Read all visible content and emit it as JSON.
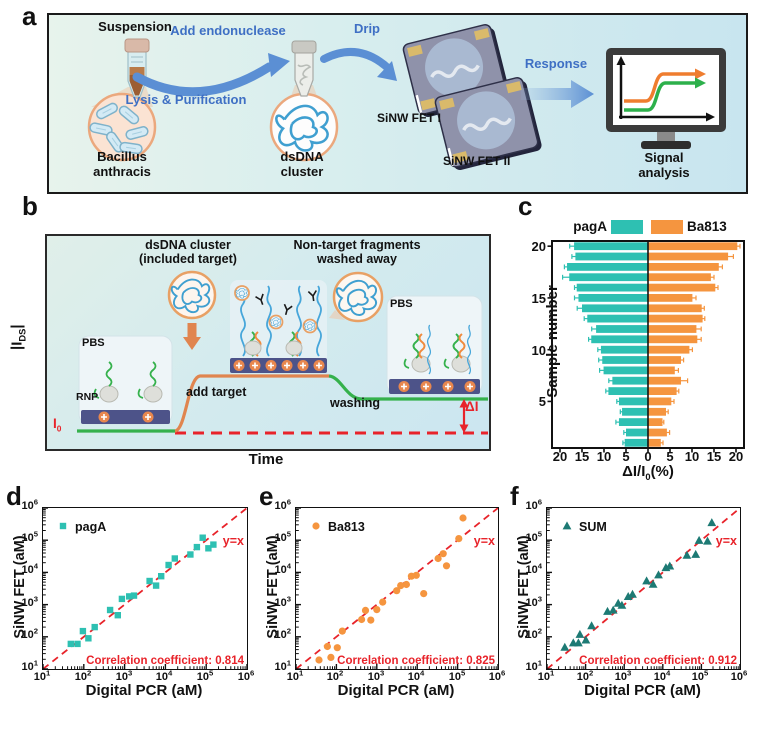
{
  "figure": {
    "panel_a": {
      "label": "a",
      "suspension": "Suspension",
      "bacillus_line1": "Bacillus",
      "bacillus_line2": "anthracis",
      "arrow_top": "Add endonuclease",
      "arrow_bottom": "Lysis & Purification",
      "dsdna_line1": "dsDNA",
      "dsdna_line2": "cluster",
      "drip": "Drip",
      "fet1": "SiNW FET I",
      "fet2": "SiNW FET II",
      "response": "Response",
      "signal_line1": "Signal",
      "signal_line2": "analysis"
    },
    "panel_b": {
      "label": "b",
      "y_axis_pre": "|I",
      "y_axis_sub": "DS",
      "y_axis_post": "|",
      "caption_left_line1": "dsDNA cluster",
      "caption_left_line2": "(included target)",
      "caption_right_line1": "Non-target fragments",
      "caption_right_line2": "washed away",
      "pbs_left": "PBS",
      "rnp": "RNP",
      "pbs_right": "PBS",
      "add_target": "add target",
      "washing": "washing",
      "i0_pre": "I",
      "i0_sub": "0",
      "delta_i": "ΔI",
      "x_axis": "Time"
    },
    "panel_c": {
      "label": "c"
    },
    "panel_d": {
      "label": "d"
    },
    "panel_e": {
      "label": "e"
    },
    "panel_f": {
      "label": "f"
    }
  },
  "chart_data": [
    {
      "id": "c",
      "type": "bar",
      "orientation": "horizontal-diverging",
      "legend": [
        "pagA",
        "Ba813"
      ],
      "ylabel": "Sample number",
      "xlabel_pre": "ΔI/I",
      "xlabel_sub": "0",
      "xlabel_post": "(%)",
      "x_ticks": [
        -20,
        -15,
        -10,
        -5,
        0,
        5,
        10,
        15,
        20
      ],
      "y_ticks": [
        5,
        10,
        15,
        20
      ],
      "xlim_each_side": [
        0,
        20
      ],
      "samples": [
        1,
        2,
        3,
        4,
        5,
        6,
        7,
        8,
        9,
        10,
        11,
        12,
        13,
        14,
        15,
        16,
        17,
        18,
        19,
        20
      ],
      "series": [
        {
          "name": "pagA",
          "side": "left",
          "color": "#2ec0b2",
          "values": [
            5.3,
            5.0,
            6.6,
            5.9,
            6.6,
            9.0,
            8.1,
            10.1,
            10.4,
            10.7,
            12.9,
            11.8,
            13.8,
            15.0,
            15.8,
            16.2,
            17.9,
            18.4,
            16.5,
            16.8
          ],
          "errors": [
            0.4,
            0.5,
            0.7,
            0.4,
            0.5,
            0.6,
            0.8,
            0.9,
            0.8,
            0.7,
            0.6,
            1.0,
            0.7,
            1.1,
            0.9,
            0.5,
            1.5,
            0.6,
            0.8,
            1.0
          ]
        },
        {
          "name": "Ba813",
          "side": "right",
          "color": "#f5953f",
          "values": [
            2.9,
            4.3,
            3.3,
            4.1,
            5.3,
            6.5,
            7.5,
            6.1,
            7.5,
            9.4,
            11.2,
            11.0,
            12.4,
            12.2,
            10.1,
            15.3,
            14.3,
            16.1,
            18.2,
            20.3
          ],
          "errors": [
            0.5,
            0.6,
            0.3,
            0.5,
            0.6,
            0.5,
            1.5,
            0.8,
            0.6,
            0.7,
            0.9,
            1.1,
            0.5,
            0.6,
            0.8,
            0.6,
            0.7,
            0.8,
            1.2,
            0.6
          ]
        }
      ]
    },
    {
      "id": "d",
      "type": "scatter",
      "legend": "pagA",
      "marker": "square",
      "color": "#2ec0b2",
      "xlabel": "Digital PCR (aM)",
      "ylabel": "SiNW FET (aM)",
      "x_scale": "log",
      "y_scale": "log",
      "xlim": [
        10,
        1000000
      ],
      "ylim": [
        10,
        1000000
      ],
      "tick_exponents": [
        1,
        2,
        3,
        4,
        5,
        6
      ],
      "reference_line": "y=x",
      "annotation": "Correlation coefficient: 0.814",
      "points": [
        [
          48,
          60
        ],
        [
          70,
          60
        ],
        [
          95,
          150
        ],
        [
          130,
          90
        ],
        [
          185,
          200
        ],
        [
          440,
          680
        ],
        [
          680,
          470
        ],
        [
          860,
          1500
        ],
        [
          1300,
          1800
        ],
        [
          1700,
          1900
        ],
        [
          4100,
          5400
        ],
        [
          5900,
          3900
        ],
        [
          7900,
          7600
        ],
        [
          12000,
          17000
        ],
        [
          17000,
          27000
        ],
        [
          41000,
          36000
        ],
        [
          59000,
          61000
        ],
        [
          82000,
          120000
        ],
        [
          113000,
          56000
        ],
        [
          150000,
          73000
        ]
      ]
    },
    {
      "id": "e",
      "type": "scatter",
      "legend": "Ba813",
      "marker": "circle",
      "color": "#f5953f",
      "xlabel": "Digital PCR (aM)",
      "ylabel": "SiNW FET (aM)",
      "x_scale": "log",
      "y_scale": "log",
      "xlim": [
        10,
        1000000
      ],
      "ylim": [
        10,
        1000000
      ],
      "tick_exponents": [
        1,
        2,
        3,
        4,
        5,
        6
      ],
      "reference_line": "y=x",
      "annotation": "Correlation coefficient: 0.825",
      "points": [
        [
          37,
          19
        ],
        [
          60,
          50
        ],
        [
          73,
          23
        ],
        [
          105,
          46
        ],
        [
          140,
          150
        ],
        [
          420,
          345
        ],
        [
          525,
          660
        ],
        [
          710,
          330
        ],
        [
          1000,
          700
        ],
        [
          1400,
          1200
        ],
        [
          3100,
          2700
        ],
        [
          3900,
          3900
        ],
        [
          5400,
          4200
        ],
        [
          7200,
          7600
        ],
        [
          9500,
          8100
        ],
        [
          14500,
          2200
        ],
        [
          33000,
          27000
        ],
        [
          44000,
          38000
        ],
        [
          53000,
          16000
        ],
        [
          107000,
          112000
        ],
        [
          136000,
          490000
        ]
      ]
    },
    {
      "id": "f",
      "type": "scatter",
      "legend": "SUM",
      "marker": "triangle",
      "color": "#1d7a74",
      "xlabel": "Digital PCR (aM)",
      "ylabel": "SiNW FET (aM)",
      "x_scale": "log",
      "y_scale": "log",
      "xlim": [
        10,
        1000000
      ],
      "ylim": [
        10,
        1000000
      ],
      "tick_exponents": [
        1,
        2,
        3,
        4,
        5,
        6
      ],
      "reference_line": "y=x",
      "annotation": "Correlation coefficient: 0.912",
      "points": [
        [
          29,
          47
        ],
        [
          48,
          64
        ],
        [
          65,
          64
        ],
        [
          71,
          118
        ],
        [
          102,
          79
        ],
        [
          143,
          219
        ],
        [
          370,
          610
        ],
        [
          520,
          670
        ],
        [
          700,
          1100
        ],
        [
          870,
          950
        ],
        [
          1270,
          1770
        ],
        [
          1640,
          2090
        ],
        [
          3800,
          5400
        ],
        [
          5600,
          4260
        ],
        [
          7750,
          8300
        ],
        [
          12000,
          14000
        ],
        [
          15200,
          15700
        ],
        [
          42000,
          34000
        ],
        [
          71000,
          36000
        ],
        [
          87000,
          98000
        ],
        [
          144000,
          93000
        ],
        [
          186000,
          350000
        ]
      ]
    }
  ]
}
